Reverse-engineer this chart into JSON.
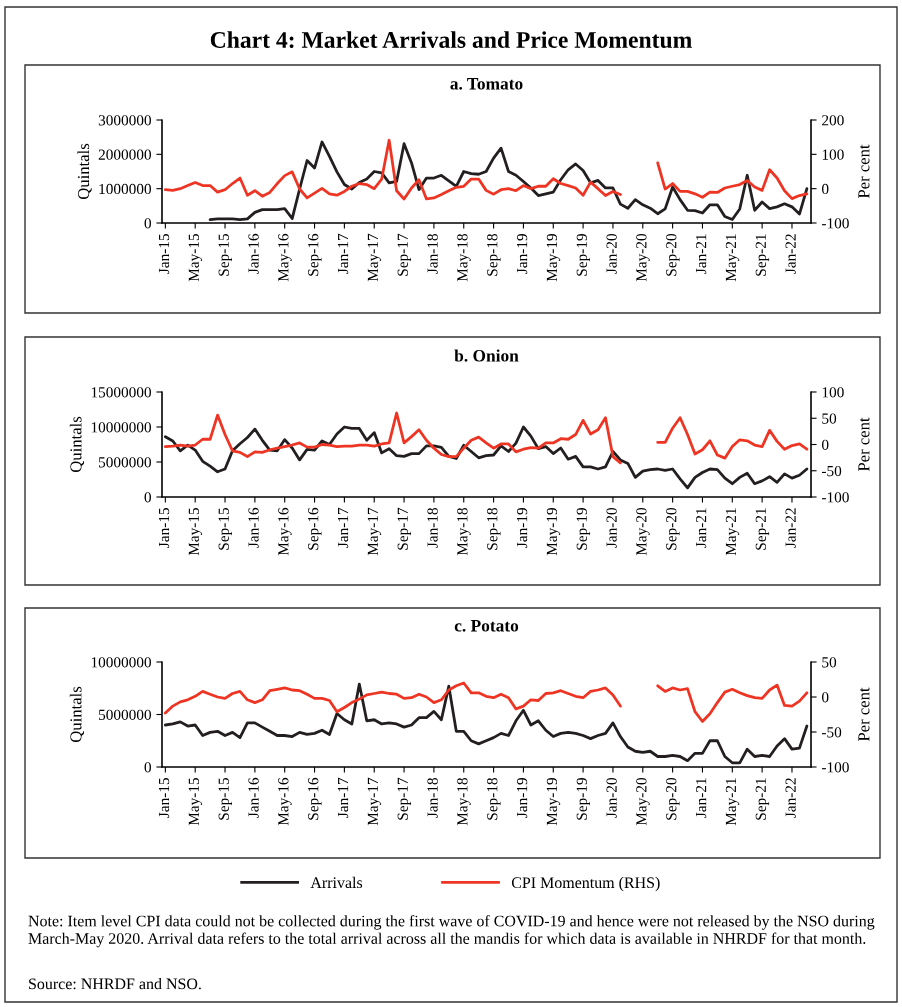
{
  "chart_data": [
    {
      "type": "line",
      "title": "Chart 4: Market Arrivals and Price Momentum",
      "subtitle": "a. Tomato",
      "ylabel": "Quintals",
      "y2label": "Per cent",
      "legend": "bottom",
      "categories": [
        "Jan-15",
        null,
        null,
        null,
        "May-15",
        null,
        null,
        null,
        "Sep-15",
        null,
        null,
        null,
        "Jan-16",
        null,
        null,
        null,
        "May-16",
        null,
        null,
        null,
        "Sep-16",
        null,
        null,
        null,
        "Jan-17",
        null,
        null,
        null,
        "May-17",
        null,
        null,
        null,
        "Sep-17",
        null,
        null,
        null,
        "Jan-18",
        null,
        null,
        null,
        "May-18",
        null,
        null,
        null,
        "Sep-18",
        null,
        null,
        null,
        "Jan-19",
        null,
        null,
        null,
        "May-19",
        null,
        null,
        null,
        "Sep-19",
        null,
        null,
        null,
        "Jan-20",
        null,
        null,
        null,
        "May-20",
        null,
        null,
        null,
        "Sep-20",
        null,
        null,
        null,
        "Jan-21",
        null,
        null,
        null,
        "May-21",
        null,
        null,
        null,
        "Sep-21",
        null,
        null,
        null,
        "Jan-22",
        null,
        null
      ],
      "ylim": [
        0,
        3000000
      ],
      "yticks": [
        0,
        1000000,
        2000000,
        3000000
      ],
      "y2lim": [
        -100,
        200
      ],
      "y2ticks": [
        -100,
        0,
        100,
        200
      ],
      "series": [
        {
          "name": "Arrivals",
          "color": "#231f20",
          "values": [
            null,
            null,
            null,
            null,
            null,
            null,
            100000,
            120000,
            120000,
            120000,
            100000,
            120000,
            310000,
            390000,
            390000,
            390000,
            420000,
            130000,
            990000,
            1820000,
            1600000,
            2360000,
            1940000,
            1490000,
            1120000,
            990000,
            1180000,
            1280000,
            1500000,
            1460000,
            1170000,
            1210000,
            2310000,
            1750000,
            970000,
            1310000,
            1310000,
            1390000,
            1230000,
            1070000,
            1500000,
            1440000,
            1420000,
            1500000,
            1890000,
            2180000,
            1500000,
            1390000,
            1210000,
            1020000,
            800000,
            850000,
            900000,
            1260000,
            1550000,
            1720000,
            1530000,
            1170000,
            1240000,
            1020000,
            1020000,
            550000,
            430000,
            680000,
            530000,
            430000,
            270000,
            410000,
            1050000,
            680000,
            370000,
            360000,
            290000,
            530000,
            530000,
            190000,
            100000,
            410000,
            1390000,
            370000,
            610000,
            420000,
            470000,
            560000,
            470000,
            260000,
            1000000
          ]
        },
        {
          "name": "CPI Momentum (RHS)",
          "color": "#ee3524",
          "axis": "y2",
          "values": [
            -3,
            -5,
            0,
            9,
            18,
            9,
            9,
            -10,
            -3,
            15,
            31,
            -19,
            -6,
            -22,
            -11,
            15,
            38,
            49,
            -1,
            -27,
            -13,
            1,
            -15,
            -19,
            -8,
            7,
            15,
            12,
            0,
            28,
            141,
            -6,
            -30,
            2,
            26,
            -30,
            -27,
            -17,
            -6,
            4,
            7,
            28,
            28,
            -5,
            -16,
            -3,
            0,
            -6,
            9,
            0,
            7,
            7,
            29,
            15,
            9,
            2,
            -19,
            19,
            0,
            -20,
            -8,
            -17,
            null,
            null,
            null,
            null,
            75,
            -1,
            15,
            -8,
            -8,
            -15,
            -25,
            -10,
            -11,
            2,
            7,
            12,
            24,
            5,
            -5,
            55,
            31,
            -6,
            -29,
            -20,
            -15
          ]
        }
      ]
    },
    {
      "type": "line",
      "title": "b. Onion",
      "ylabel": "Quintals",
      "y2label": "Per cent",
      "categories": [
        "Jan-15",
        null,
        null,
        null,
        "May-15",
        null,
        null,
        null,
        "Sep-15",
        null,
        null,
        null,
        "Jan-16",
        null,
        null,
        null,
        "May-16",
        null,
        null,
        null,
        "Sep-16",
        null,
        null,
        null,
        "Jan-17",
        null,
        null,
        null,
        "May-17",
        null,
        null,
        null,
        "Sep-17",
        null,
        null,
        null,
        "Jan-18",
        null,
        null,
        null,
        "May-18",
        null,
        null,
        null,
        "Sep-18",
        null,
        null,
        null,
        "Jan-19",
        null,
        null,
        null,
        "May-19",
        null,
        null,
        null,
        "Sep-19",
        null,
        null,
        null,
        "Jan-20",
        null,
        null,
        null,
        "May-20",
        null,
        null,
        null,
        "Sep-20",
        null,
        null,
        null,
        "Jan-21",
        null,
        null,
        null,
        "May-21",
        null,
        null,
        null,
        "Sep-21",
        null,
        null,
        null,
        "Jan-22",
        null,
        null
      ],
      "ylim": [
        0,
        15000000
      ],
      "yticks": [
        0,
        5000000,
        10000000,
        15000000
      ],
      "y2lim": [
        -100,
        100
      ],
      "y2ticks": [
        -100,
        -50,
        0,
        50,
        100
      ],
      "series": [
        {
          "color": "#231f20",
          "values": [
            8600000,
            8000000,
            6600000,
            7400000,
            6700000,
            5100000,
            4400000,
            3600000,
            4000000,
            6600000,
            7600000,
            8500000,
            9700000,
            8100000,
            6700000,
            6600000,
            8200000,
            7000000,
            5300000,
            6800000,
            6700000,
            8000000,
            7500000,
            9000000,
            10000000,
            9800000,
            9800000,
            8100000,
            9200000,
            6300000,
            6900000,
            5900000,
            5800000,
            6200000,
            6200000,
            7300000,
            7300000,
            7100000,
            5800000,
            5500000,
            7400000,
            6500000,
            5600000,
            5900000,
            6000000,
            7300000,
            6500000,
            7700000,
            10000000,
            8700000,
            6900000,
            7200000,
            6200000,
            7000000,
            5400000,
            5800000,
            4300000,
            4300000,
            4000000,
            4300000,
            6500000,
            5300000,
            4800000,
            2800000,
            3700000,
            3900000,
            4000000,
            3800000,
            4000000,
            2600000,
            1300000,
            2800000,
            3500000,
            4000000,
            3900000,
            2700000,
            1900000,
            2800000,
            3400000,
            1900000,
            2300000,
            2900000,
            2100000,
            3300000,
            2700000,
            3100000,
            4000000
          ]
        },
        {
          "color": "#ee3524",
          "axis": "y2",
          "values": [
            -4,
            -3,
            -1,
            -3,
            -1,
            10,
            10,
            56,
            19,
            -12,
            -15,
            -23,
            -14,
            -15,
            -10,
            -7,
            -4,
            -1,
            3,
            -5,
            -5,
            0,
            -1,
            -4,
            -3,
            -3,
            -1,
            -1,
            -3,
            1,
            3,
            60,
            3,
            15,
            28,
            8,
            -7,
            -19,
            -23,
            -23,
            -7,
            8,
            14,
            3,
            -7,
            1,
            1,
            -14,
            -9,
            -6,
            -7,
            3,
            3,
            11,
            10,
            19,
            46,
            20,
            28,
            51,
            -23,
            -35,
            null,
            null,
            null,
            null,
            4,
            4,
            31,
            51,
            19,
            -18,
            -10,
            7,
            -20,
            -26,
            -4,
            9,
            7,
            -1,
            -4,
            27,
            6,
            -9,
            -2,
            1,
            -9
          ]
        }
      ]
    },
    {
      "type": "line",
      "title": "c. Potato",
      "ylabel": "Quintals",
      "y2label": "Per cent",
      "categories": [
        "Jan-15",
        null,
        null,
        null,
        "May-15",
        null,
        null,
        null,
        "Sep-15",
        null,
        null,
        null,
        "Jan-16",
        null,
        null,
        null,
        "May-16",
        null,
        null,
        null,
        "Sep-16",
        null,
        null,
        null,
        "Jan-17",
        null,
        null,
        null,
        "May-17",
        null,
        null,
        null,
        "Sep-17",
        null,
        null,
        null,
        "Jan-18",
        null,
        null,
        null,
        "May-18",
        null,
        null,
        null,
        "Sep-18",
        null,
        null,
        null,
        "Jan-19",
        null,
        null,
        null,
        "May-19",
        null,
        null,
        null,
        "Sep-19",
        null,
        null,
        null,
        "Jan-20",
        null,
        null,
        null,
        "May-20",
        null,
        null,
        null,
        "Sep-20",
        null,
        null,
        null,
        "Jan-21",
        null,
        null,
        null,
        "May-21",
        null,
        null,
        null,
        "Sep-21",
        null,
        null,
        null,
        "Jan-22",
        null,
        null
      ],
      "ylim": [
        0,
        10000000
      ],
      "yticks": [
        0,
        5000000,
        10000000
      ],
      "y2lim": [
        -100,
        50
      ],
      "y2ticks": [
        -100,
        -50,
        0,
        50
      ],
      "series": [
        {
          "color": "#231f20",
          "values": [
            4000000,
            4100000,
            4300000,
            3900000,
            4000000,
            3000000,
            3300000,
            3400000,
            3000000,
            3300000,
            2800000,
            4200000,
            4200000,
            3800000,
            3400000,
            3000000,
            3000000,
            2900000,
            3300000,
            3100000,
            3200000,
            3500000,
            3100000,
            5100000,
            4500000,
            4100000,
            7900000,
            4400000,
            4500000,
            4100000,
            4200000,
            4100000,
            3800000,
            4000000,
            4700000,
            4700000,
            5300000,
            4500000,
            7700000,
            3400000,
            3400000,
            2500000,
            2200000,
            2500000,
            2800000,
            3200000,
            3000000,
            4400000,
            5400000,
            4000000,
            4400000,
            3500000,
            2900000,
            3200000,
            3300000,
            3200000,
            3000000,
            2700000,
            3000000,
            3200000,
            4200000,
            2900000,
            1900000,
            1500000,
            1400000,
            1500000,
            1000000,
            1000000,
            1100000,
            1000000,
            600000,
            1300000,
            1300000,
            2500000,
            2500000,
            1000000,
            400000,
            400000,
            1700000,
            1000000,
            1100000,
            1000000,
            2000000,
            2700000,
            1700000,
            1800000,
            3900000
          ]
        },
        {
          "color": "#ee3524",
          "axis": "y2",
          "values": [
            -23,
            -13,
            -7,
            -4,
            1,
            8,
            4,
            0,
            -2,
            5,
            8,
            -4,
            -8,
            -4,
            9,
            11,
            13,
            10,
            9,
            4,
            -2,
            -2,
            -5,
            -21,
            -15,
            -8,
            -3,
            3,
            5,
            7,
            5,
            4,
            -2,
            -1,
            4,
            0,
            -8,
            -4,
            10,
            16,
            20,
            6,
            6,
            1,
            -1,
            4,
            -1,
            -17,
            -13,
            -4,
            -5,
            5,
            6,
            9,
            5,
            1,
            -1,
            8,
            10,
            13,
            3,
            -13,
            null,
            null,
            null,
            null,
            16,
            8,
            13,
            10,
            12,
            -21,
            -35,
            -24,
            -8,
            7,
            11,
            6,
            2,
            -1,
            -2,
            10,
            17,
            -12,
            -13,
            -6,
            6
          ]
        }
      ],
      "annotations": [
        "Note: Item level CPI data could not be collected during the first wave of COVID-19 and hence were not released by the NSO during March-May 2020. Arrival data refers to the total arrival across all the mandis for which data is available in NHRDF for that month.",
        "Source: NHRDF and NSO."
      ]
    }
  ]
}
